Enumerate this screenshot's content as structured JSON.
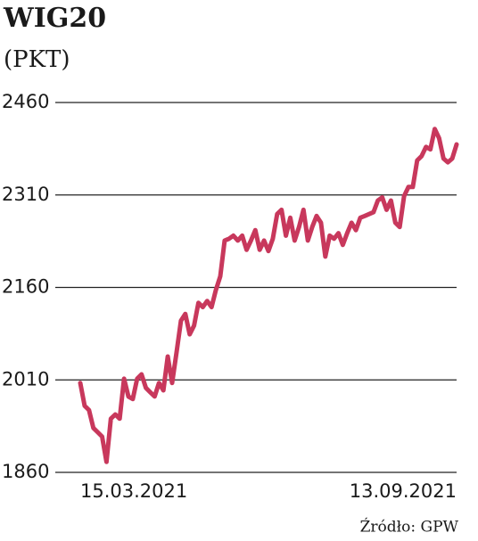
{
  "chart_data": {
    "type": "line",
    "title": "WIG20",
    "subtitle": "(PKT)",
    "source": "Źródło: GPW",
    "categories": [
      "15.03.2021",
      null,
      null,
      null,
      null,
      null,
      null,
      null,
      null,
      null,
      null,
      null,
      null,
      null,
      null,
      null,
      null,
      null,
      null,
      null,
      null,
      null,
      null,
      null,
      null,
      null,
      null,
      null,
      null,
      null,
      null,
      null,
      null,
      null,
      null,
      null,
      null,
      null,
      null,
      null,
      null,
      null,
      null,
      null,
      null,
      null,
      null,
      null,
      null,
      null,
      null,
      null,
      null,
      null,
      null,
      null,
      null,
      null,
      null,
      null,
      null,
      null,
      null,
      null,
      null,
      null,
      null,
      null,
      null,
      null,
      null,
      null,
      null,
      null,
      null,
      null,
      null,
      null,
      null,
      null,
      null,
      null,
      null,
      null,
      null,
      null,
      "13.09.2021"
    ],
    "series": [
      {
        "name": "WIG20",
        "color": "#c8385c",
        "values": [
          2005,
          1968,
          1961,
          1932,
          1925,
          1918,
          1877,
          1947,
          1954,
          1947,
          2012,
          1983,
          1979,
          2012,
          2019,
          1997,
          1990,
          1983,
          2005,
          1993,
          2048,
          2005,
          2055,
          2106,
          2117,
          2084,
          2098,
          2135,
          2128,
          2138,
          2128,
          2156,
          2178,
          2236,
          2239,
          2244,
          2236,
          2244,
          2221,
          2236,
          2253,
          2221,
          2236,
          2219,
          2239,
          2279,
          2286,
          2244,
          2273,
          2236,
          2258,
          2286,
          2236,
          2258,
          2276,
          2265,
          2210,
          2244,
          2239,
          2248,
          2229,
          2248,
          2265,
          2253,
          2273,
          2276,
          2279,
          2282,
          2301,
          2306,
          2286,
          2301,
          2265,
          2258,
          2308,
          2323,
          2323,
          2366,
          2373,
          2388,
          2384,
          2417,
          2402,
          2369,
          2363,
          2369,
          2392
        ]
      }
    ],
    "ylim": [
      1860,
      2460
    ],
    "yticks": [
      1860,
      2010,
      2160,
      2310,
      2460
    ],
    "grid": true
  }
}
